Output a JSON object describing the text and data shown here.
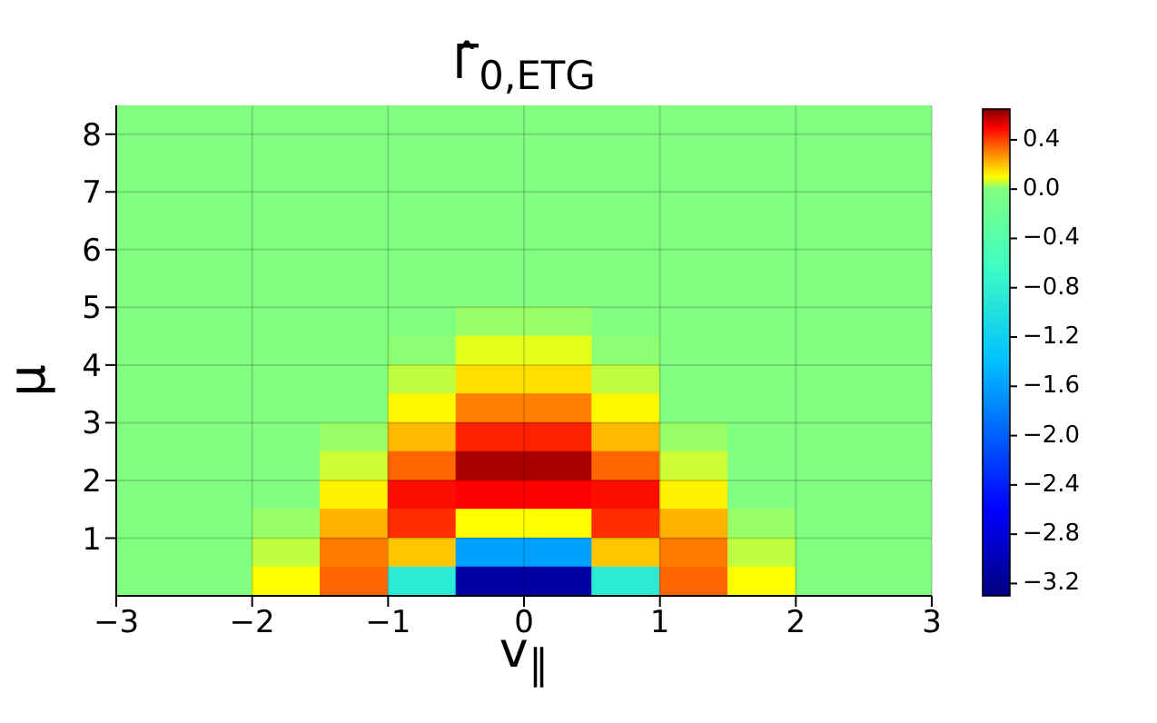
{
  "chart_data": {
    "type": "heatmap",
    "title": "Γ̂$_{0,ETG}$",
    "xlabel": "v$_{∥}$",
    "ylabel": "μ",
    "x": [
      -2.75,
      -2.25,
      -1.75,
      -1.25,
      -0.75,
      -0.25,
      0.25,
      0.75,
      1.25,
      1.75,
      2.25,
      2.75
    ],
    "y": [
      8.25,
      7.75,
      7.25,
      6.75,
      6.25,
      5.75,
      5.25,
      4.75,
      4.25,
      3.75,
      3.25,
      2.75,
      2.25,
      1.75,
      1.25,
      0.75,
      0.25
    ],
    "cells": [
      [
        0,
        0,
        0,
        0,
        0,
        0,
        0,
        0,
        0,
        0,
        0,
        0
      ],
      [
        0,
        0,
        0,
        0,
        0,
        0,
        0,
        0,
        0,
        0,
        0,
        0
      ],
      [
        0,
        0,
        0,
        0,
        0,
        0,
        0,
        0,
        0,
        0,
        0,
        0
      ],
      [
        0,
        0,
        0,
        0,
        0,
        0,
        0,
        0,
        0,
        0,
        0,
        0
      ],
      [
        0,
        0,
        0,
        0,
        0,
        0,
        0,
        0,
        0,
        0,
        0,
        0
      ],
      [
        0,
        0,
        0,
        0,
        0,
        0,
        0,
        0,
        0,
        0,
        0,
        0
      ],
      [
        0,
        0,
        0,
        0,
        0,
        0,
        0,
        0,
        0,
        0,
        0,
        0
      ],
      [
        0,
        0,
        0,
        0,
        0,
        0.02,
        0.02,
        0,
        0,
        0,
        0,
        0
      ],
      [
        0,
        0,
        0,
        0,
        0.01,
        0.08,
        0.08,
        0.01,
        0,
        0,
        0,
        0
      ],
      [
        0,
        0,
        0,
        0,
        0.05,
        0.15,
        0.15,
        0.05,
        0,
        0,
        0,
        0
      ],
      [
        0,
        0,
        0,
        0,
        0.11,
        0.3,
        0.3,
        0.11,
        0,
        0,
        0,
        0
      ],
      [
        0,
        0,
        0,
        0.02,
        0.21,
        0.45,
        0.45,
        0.21,
        0.02,
        0,
        0,
        0
      ],
      [
        0,
        0,
        0,
        0.06,
        0.34,
        0.6,
        0.6,
        0.34,
        0.06,
        0,
        0,
        0
      ],
      [
        0,
        0,
        0,
        0.12,
        0.48,
        0.5,
        0.5,
        0.48,
        0.12,
        0,
        0,
        0
      ],
      [
        0,
        0,
        0.02,
        0.22,
        0.43,
        0.1,
        0.1,
        0.43,
        0.22,
        0.02,
        0,
        0
      ],
      [
        0,
        0,
        0.05,
        0.31,
        0.19,
        -1.6,
        -1.6,
        0.19,
        0.31,
        0.05,
        0,
        0
      ],
      [
        0,
        0,
        0.1,
        0.34,
        -0.85,
        -3.1,
        -3.1,
        -0.85,
        0.34,
        0.1,
        0,
        0
      ]
    ],
    "xlim": [
      -3,
      3
    ],
    "xticks": [
      {
        "value": -3,
        "label": "−3"
      },
      {
        "value": -2,
        "label": "−2"
      },
      {
        "value": -1,
        "label": "−1"
      },
      0,
      1,
      2,
      3
    ],
    "ylim": [
      0,
      8.5
    ],
    "yticks": [
      1,
      2,
      3,
      4,
      5,
      6,
      7,
      8
    ],
    "clim": [
      -3.3,
      0.65
    ],
    "cticks": [
      {
        "value": 0.4,
        "label": "0.4"
      },
      {
        "value": 0,
        "label": "0.0"
      },
      {
        "value": -0.4,
        "label": "−0.4"
      },
      {
        "value": -0.8,
        "label": "−0.8"
      },
      {
        "value": -1.2,
        "label": "−1.2"
      },
      {
        "value": -1.6,
        "label": "−1.6"
      },
      {
        "value": -2,
        "label": "−2.0"
      },
      {
        "value": -2.4,
        "label": "−2.4"
      },
      {
        "value": -2.8,
        "label": "−2.8"
      },
      {
        "value": -3.2,
        "label": "−3.2"
      }
    ],
    "grid": true
  }
}
